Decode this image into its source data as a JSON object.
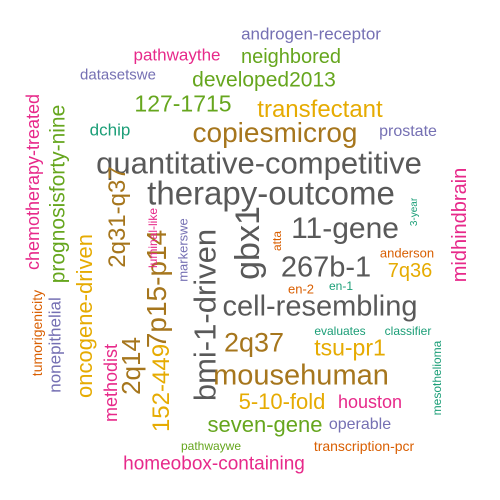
{
  "words": [
    {
      "text": "androgen-receptor",
      "color": "#7570b3"
    },
    {
      "text": "pathwaythe",
      "color": "#e7298a"
    },
    {
      "text": "neighbored",
      "color": "#66a61e"
    },
    {
      "text": "datasetswe",
      "color": "#7570b3"
    },
    {
      "text": "developed2013",
      "color": "#66a61e"
    },
    {
      "text": "127-1715",
      "color": "#66a61e"
    },
    {
      "text": "transfectant",
      "color": "#e6ab02"
    },
    {
      "text": "dchip",
      "color": "#1b9e77"
    },
    {
      "text": "copiesmicrog",
      "color": "#a6761d"
    },
    {
      "text": "prostate",
      "color": "#7570b3"
    },
    {
      "text": "quantitative-competitive",
      "color": "#595959"
    },
    {
      "text": "therapy-outcome",
      "color": "#595959"
    },
    {
      "text": "11-gene",
      "color": "#595959"
    },
    {
      "text": "267b-1",
      "color": "#595959"
    },
    {
      "text": "7q36",
      "color": "#e6ab02"
    },
    {
      "text": "anderson",
      "color": "#d95f02"
    },
    {
      "text": "atta",
      "color": "#d95f02"
    },
    {
      "text": "en-2",
      "color": "#d95f02"
    },
    {
      "text": "en-1",
      "color": "#1b9e77"
    },
    {
      "text": "cell-resembling",
      "color": "#595959"
    },
    {
      "text": "evaluates",
      "color": "#1b9e77"
    },
    {
      "text": "classifier",
      "color": "#1b9e77"
    },
    {
      "text": "2q37",
      "color": "#a6761d"
    },
    {
      "text": "tsu-pr1",
      "color": "#e6ab02"
    },
    {
      "text": "mousehuman",
      "color": "#a6761d"
    },
    {
      "text": "5-10-fold",
      "color": "#e6ab02"
    },
    {
      "text": "houston",
      "color": "#e7298a"
    },
    {
      "text": "seven-gene",
      "color": "#66a61e"
    },
    {
      "text": "operable",
      "color": "#7570b3"
    },
    {
      "text": "pathwaywe",
      "color": "#66a61e"
    },
    {
      "text": "transcription-pcr",
      "color": "#d95f02"
    },
    {
      "text": "homeobox-containing",
      "color": "#e7298a"
    },
    {
      "text": "chemotherapy-treated",
      "color": "#e7298a"
    },
    {
      "text": "prognosisforty-nine",
      "color": "#66a61e"
    },
    {
      "text": "2q31-q37",
      "color": "#a6761d"
    },
    {
      "text": "oncogene-driven",
      "color": "#e6ab02"
    },
    {
      "text": "tumorigenicity",
      "color": "#d95f02"
    },
    {
      "text": "nonepithelial",
      "color": "#7570b3"
    },
    {
      "text": "methodist",
      "color": "#e7298a"
    },
    {
      "text": "2q14",
      "color": "#a6761d"
    },
    {
      "text": "152-449",
      "color": "#e6ab02"
    },
    {
      "text": "7p15-p14",
      "color": "#a6761d"
    },
    {
      "text": "luminal-like",
      "color": "#e7298a"
    },
    {
      "text": "markerswe",
      "color": "#7570b3"
    },
    {
      "text": "bmi-1-driven",
      "color": "#595959"
    },
    {
      "text": "gbx1",
      "color": "#595959"
    },
    {
      "text": "3-year",
      "color": "#1b9e77"
    },
    {
      "text": "midhindbrain",
      "color": "#e7298a"
    },
    {
      "text": "mesothelioma",
      "color": "#1b9e77"
    }
  ]
}
